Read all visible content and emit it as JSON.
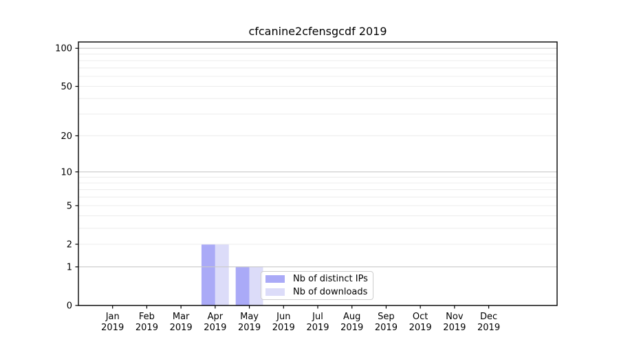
{
  "figure": {
    "title": "cfcanine2cfensgcdf 2019",
    "background": "#ffffff"
  },
  "chart_data": {
    "type": "bar",
    "title": "cfcanine2cfensgcdf 2019",
    "categories": [
      "Jan",
      "Feb",
      "Mar",
      "Apr",
      "May",
      "Jun",
      "Jul",
      "Aug",
      "Sep",
      "Oct",
      "Nov",
      "Dec"
    ],
    "x_year_label": "2019",
    "series": [
      {
        "name": "Nb of distinct IPs",
        "color": "#aaaaf7",
        "values": [
          0,
          0,
          0,
          2,
          1,
          0,
          0,
          0,
          0,
          0,
          0,
          0
        ]
      },
      {
        "name": "Nb of downloads",
        "color": "#dcdcf9",
        "values": [
          0,
          0,
          0,
          2,
          1,
          0,
          0,
          0,
          0,
          0,
          0,
          0
        ]
      }
    ],
    "xlabel": "",
    "ylabel": "",
    "yscale": "symlog (position = log10(1+y))",
    "ylim": [
      0,
      113
    ],
    "yticks": [
      0,
      1,
      2,
      5,
      10,
      20,
      50,
      100
    ],
    "major_gridlines": [
      1,
      10,
      100
    ],
    "minor_gridlines": [
      2,
      3,
      4,
      5,
      6,
      7,
      8,
      9,
      20,
      30,
      40,
      50,
      60,
      70,
      80,
      90
    ],
    "grid": "horizontal, drawn above bars",
    "legend_position": "lower center, inside axes",
    "colors": {
      "axis": "#000000",
      "tick_text": "#000000",
      "major_grid": "#c9c9c9",
      "minor_grid": "#ececec",
      "legend_border": "#cccccc"
    }
  }
}
